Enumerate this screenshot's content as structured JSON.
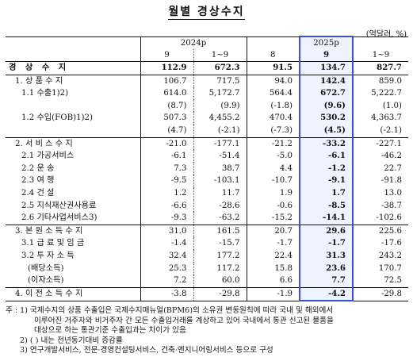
{
  "title": "월별 경상수지",
  "unit": "(억달러, %)",
  "header": {
    "year1": "2024p",
    "year2": "2025p",
    "cols": [
      "9",
      "1~9",
      "8",
      "9",
      "1~9"
    ]
  },
  "rows": [
    {
      "label": "경 상 수 지",
      "v": [
        "112.9",
        "672.3",
        "91.5",
        "134.7",
        "827.7"
      ]
    },
    {
      "label": "1. 상 품 수 지",
      "v": [
        "106.7",
        "717.5",
        "94.0",
        "142.4",
        "859.0"
      ]
    },
    {
      "label": "1.1 수출1)2)",
      "v": [
        "614.0",
        "5,172.7",
        "564.4",
        "672.7",
        "5,222.7"
      ]
    },
    {
      "label": "",
      "v": [
        "(8.7)",
        "(9.9)",
        "(-1.8)",
        "(9.6)",
        "(1.0)"
      ]
    },
    {
      "label": "1.2 수입(FOB)1)2)",
      "v": [
        "507.3",
        "4,455.2",
        "470.4",
        "530.2",
        "4,363.7"
      ]
    },
    {
      "label": "",
      "v": [
        "(4.7)",
        "(-2.1)",
        "(-7.3)",
        "(4.5)",
        "(-2.1)"
      ]
    },
    {
      "label": "2. 서 비 스 수 지",
      "v": [
        "-21.0",
        "-177.1",
        "-21.2",
        "-33.2",
        "-227.1"
      ]
    },
    {
      "label": "2.1 가공서비스",
      "v": [
        "-6.1",
        "-51.4",
        "-5.0",
        "-6.1",
        "-46.2"
      ]
    },
    {
      "label": "2.2 운 송",
      "v": [
        "7.3",
        "38.7",
        "4.4",
        "-1.2",
        "22.7"
      ]
    },
    {
      "label": "2.3 여 행",
      "v": [
        "-9.5",
        "-103.1",
        "-10.7",
        "-9.1",
        "-91.8"
      ]
    },
    {
      "label": "2.4 건 설",
      "v": [
        "1.2",
        "11.7",
        "1.9",
        "1.7",
        "13.0"
      ]
    },
    {
      "label": "2.5 지식재산권사용료",
      "v": [
        "-6.6",
        "-28.6",
        "-0.6",
        "-8.5",
        "-38.7"
      ]
    },
    {
      "label": "2.6 기타사업서비스3)",
      "v": [
        "-9.3",
        "-63.2",
        "-15.2",
        "-14.1",
        "-102.6"
      ]
    },
    {
      "label": "3. 본 원 소 득 수 지",
      "v": [
        "31.0",
        "161.5",
        "20.7",
        "29.6",
        "225.6"
      ]
    },
    {
      "label": "3.1 급 료 및 임 금",
      "v": [
        "-1.4",
        "-15.7",
        "-1.7",
        "-1.7",
        "-17.6"
      ]
    },
    {
      "label": "3.2 투 자 소 득",
      "v": [
        "32.4",
        "177.2",
        "22.4",
        "31.3",
        "243.2"
      ]
    },
    {
      "label": "(배당소득)",
      "v": [
        "25.3",
        "117.2",
        "15.8",
        "23.6",
        "170.7"
      ]
    },
    {
      "label": "(이자소득)",
      "v": [
        "7.2",
        "60.0",
        "6.6",
        "7.7",
        "72.5"
      ]
    },
    {
      "label": "4. 이 전 소 득 수 지",
      "v": [
        "-3.8",
        "-29.8",
        "-1.9",
        "-4.2",
        "-29.8"
      ]
    }
  ],
  "notes": [
    "주 : 1) 국제수지의 상품 수출입은 국제수지매뉴얼(BPM6)의 소유권 변동원칙에 따라 국내 및 해외에서",
    "이루어진 거주자와 비거주자 간 모든 수출입거래를 계상하고 있어 국내에서 통관 신고된 물품을",
    "대상으로 하는 통관기준 수출입과는 차이가 있음",
    "2) ( ) 내는 전년동기대비 증감률",
    "3) 연구개발서비스, 전문·경영컨설팅서비스, 건축·엔지니어링서비스 등으로 구성"
  ]
}
